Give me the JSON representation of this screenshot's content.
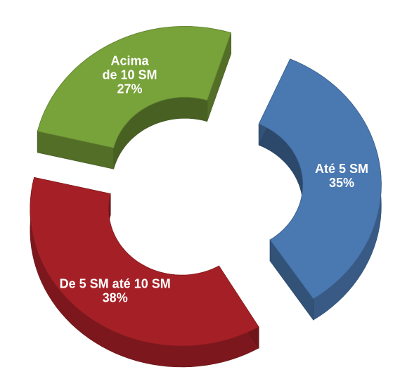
{
  "chart_data": {
    "type": "pie",
    "variant": "exploded 3D doughnut",
    "title": "",
    "legend": "none",
    "categories": [
      "Até 5 SM",
      "De 5 SM até 10 SM",
      "Acima de 10 SM"
    ],
    "values": [
      35,
      38,
      27
    ],
    "unit": "%",
    "colors": [
      "#4a78b0",
      "#a52026",
      "#78a23a"
    ],
    "label_lines": [
      [
        "Até 5 SM",
        "35%"
      ],
      [
        "De 5 SM até 10 SM",
        "38%"
      ],
      [
        "Acima",
        "de 10 SM",
        "27%"
      ]
    ]
  }
}
